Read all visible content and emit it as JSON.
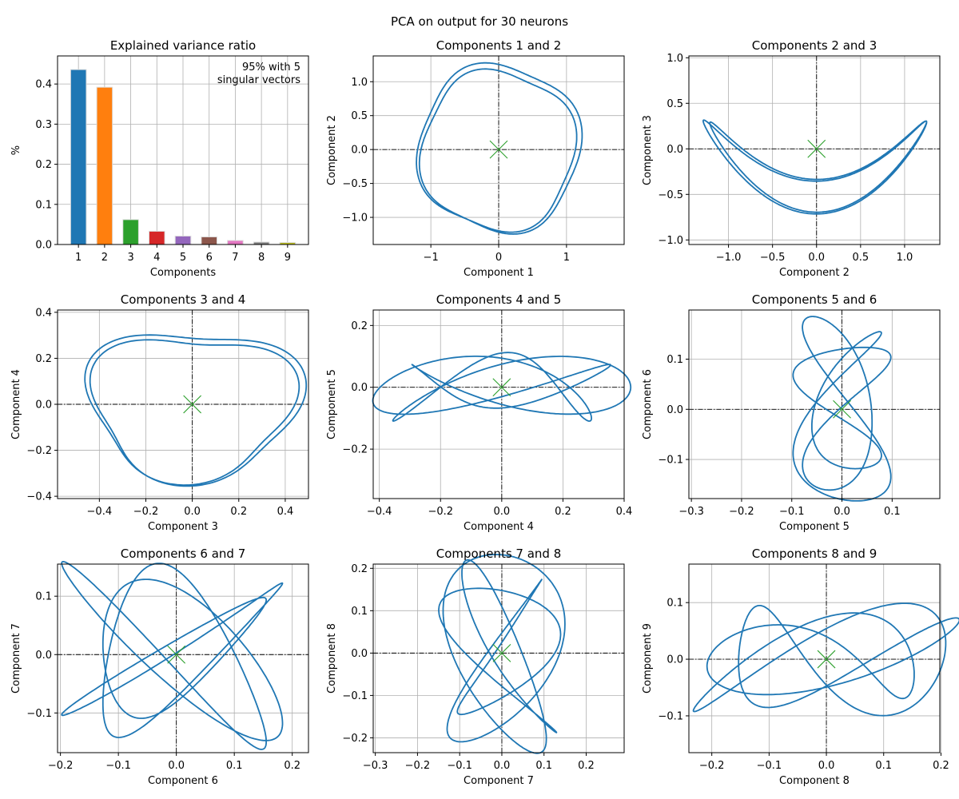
{
  "figure_title": "PCA on output for 30 neurons",
  "chart_data": [
    {
      "type": "bar",
      "title": "Explained variance ratio",
      "xlabel": "Components",
      "ylabel": "%",
      "categories": [
        "1",
        "2",
        "3",
        "4",
        "5",
        "6",
        "7",
        "8",
        "9"
      ],
      "values": [
        0.436,
        0.392,
        0.062,
        0.033,
        0.021,
        0.019,
        0.01,
        0.006,
        0.005
      ],
      "colors": [
        "#1f77b4",
        "#ff7f0e",
        "#2ca02c",
        "#d62728",
        "#9467bd",
        "#8c564b",
        "#e377c2",
        "#7f7f7f",
        "#bcbd22"
      ],
      "ylim": [
        0,
        0.47
      ],
      "yticks": [
        0.0,
        0.1,
        0.2,
        0.3,
        0.4
      ],
      "ytick_labels": [
        "0.0",
        "0.1",
        "0.2",
        "0.3",
        "0.4"
      ],
      "annotation": [
        "95% with 5",
        "singular vectors"
      ],
      "grid": true
    },
    {
      "type": "line",
      "title": "Components 1 and 2",
      "xlabel": "Component 1",
      "ylabel": "Component 2",
      "xlim": [
        -1.85,
        1.85
      ],
      "ylim": [
        -1.4,
        1.38
      ],
      "xticks": [
        -1,
        0,
        1
      ],
      "xtick_labels": [
        "−1",
        "0",
        "1"
      ],
      "yticks": [
        -1.0,
        -0.5,
        0.0,
        0.5,
        1.0
      ],
      "ytick_labels": [
        "−1.0",
        "−0.5",
        "0.0",
        "0.5",
        "1.0"
      ],
      "shape": "loop",
      "rx": 1.15,
      "ry": 1.25,
      "loops": 2,
      "k": 4,
      "amp": 0.06,
      "grid": true
    },
    {
      "type": "line",
      "title": "Components 2 and 3",
      "xlabel": "Component 2",
      "ylabel": "Component 3",
      "xlim": [
        -1.45,
        1.4
      ],
      "ylim": [
        -1.05,
        1.02
      ],
      "xticks": [
        -1.0,
        -0.5,
        0.0,
        0.5,
        1.0
      ],
      "xtick_labels": [
        "−1.0",
        "−0.5",
        "0.0",
        "0.5",
        "1.0"
      ],
      "yticks": [
        -1.0,
        -0.5,
        0.0,
        0.5,
        1.0
      ],
      "ytick_labels": [
        "−1.0",
        "−0.5",
        "0.0",
        "0.5",
        "1.0"
      ],
      "shape": "bowtie",
      "loops": 2,
      "grid": true
    },
    {
      "type": "line",
      "title": "Components 3 and 4",
      "xlabel": "Component 3",
      "ylabel": "Component 4",
      "xlim": [
        -0.58,
        0.5
      ],
      "ylim": [
        -0.41,
        0.41
      ],
      "xticks": [
        -0.4,
        -0.2,
        0.0,
        0.2,
        0.4
      ],
      "xtick_labels": [
        "−0.4",
        "−0.2",
        "0.0",
        "0.2",
        "0.4"
      ],
      "yticks": [
        -0.4,
        -0.2,
        0.0,
        0.2,
        0.4
      ],
      "ytick_labels": [
        "−0.4",
        "−0.2",
        "0.0",
        "0.2",
        "0.4"
      ],
      "shape": "loop",
      "rx": 0.44,
      "ry": 0.33,
      "loops": 4,
      "k": 3,
      "amp": 0.13,
      "grid": true
    },
    {
      "type": "line",
      "title": "Components 4 and 5",
      "xlabel": "Component 4",
      "ylabel": "Component 5",
      "xlim": [
        -0.42,
        0.4
      ],
      "ylim": [
        -0.36,
        0.25
      ],
      "xticks": [
        -0.4,
        -0.2,
        0.0,
        0.2,
        0.4
      ],
      "xtick_labels": [
        "−0.4",
        "−0.2",
        "0.0",
        "0.2",
        "0.4"
      ],
      "yticks": [
        -0.2,
        0.0,
        0.2
      ],
      "ytick_labels": [
        "−0.2",
        "0.0",
        "0.2"
      ],
      "shape": "lissajous",
      "ax": 0.34,
      "ay": 0.09,
      "fx": 3,
      "fy": 5,
      "px": 0.4,
      "py": 1.1,
      "loops": 1,
      "grid": true
    },
    {
      "type": "line",
      "title": "Components 5 and 6",
      "xlabel": "Component 5",
      "ylabel": "Component 6",
      "xlim": [
        -0.305,
        0.195
      ],
      "ylim": [
        -0.178,
        0.198
      ],
      "xticks": [
        -0.3,
        -0.2,
        -0.1,
        0.0,
        0.1
      ],
      "xtick_labels": [
        "−0.3",
        "−0.2",
        "−0.1",
        "0.0",
        "0.1"
      ],
      "yticks": [
        -0.1,
        0.0,
        0.1
      ],
      "ytick_labels": [
        "−0.1",
        "0.0",
        "0.1"
      ],
      "shape": "lissajous",
      "ax": 0.08,
      "ay": 0.15,
      "fx": 5,
      "fy": 3,
      "px": 0.9,
      "py": 0.2,
      "loops": 1,
      "grid": true
    },
    {
      "type": "line",
      "title": "Components 6 and 7",
      "xlabel": "Component 6",
      "ylabel": "Component 7",
      "xlim": [
        -0.205,
        0.228
      ],
      "ylim": [
        -0.168,
        0.155
      ],
      "xticks": [
        -0.2,
        -0.1,
        0.0,
        0.1,
        0.2
      ],
      "xtick_labels": [
        "−0.2",
        "−0.1",
        "0.0",
        "0.1",
        "0.2"
      ],
      "yticks": [
        -0.1,
        0.0,
        0.1
      ],
      "ytick_labels": [
        "−0.1",
        "0.0",
        "0.1"
      ],
      "shape": "lissajous",
      "ax": 0.16,
      "ay": 0.13,
      "fx": 4,
      "fy": 5,
      "px": 1.3,
      "py": 0.5,
      "loops": 1,
      "grid": true
    },
    {
      "type": "line",
      "title": "Components 7 and 8",
      "xlabel": "Component 7",
      "ylabel": "Component 8",
      "xlim": [
        -0.305,
        0.29
      ],
      "ylim": [
        -0.235,
        0.21
      ],
      "xticks": [
        -0.3,
        -0.2,
        -0.1,
        0.0,
        0.1,
        0.2
      ],
      "xtick_labels": [
        "−0.3",
        "−0.2",
        "−0.1",
        "0.0",
        "0.1",
        "0.2"
      ],
      "yticks": [
        -0.2,
        -0.1,
        0.0,
        0.1,
        0.2
      ],
      "ytick_labels": [
        "−0.2",
        "−0.1",
        "0.0",
        "0.1",
        "0.2"
      ],
      "shape": "lissajous",
      "ax": 0.12,
      "ay": 0.19,
      "fx": 5,
      "fy": 4,
      "px": 0.3,
      "py": 1.7,
      "loops": 1,
      "grid": true
    },
    {
      "type": "line",
      "title": "Components 8 and 9",
      "xlabel": "Component 8",
      "ylabel": "Component 9",
      "xlim": [
        -0.24,
        0.198
      ],
      "ylim": [
        -0.165,
        0.168
      ],
      "xticks": [
        -0.2,
        -0.1,
        0.0,
        0.1,
        0.2
      ],
      "xtick_labels": [
        "−0.2",
        "−0.1",
        "0.0",
        "0.1",
        "0.2"
      ],
      "yticks": [
        -0.1,
        0.0,
        0.1
      ],
      "ytick_labels": [
        "−0.1",
        "0.0",
        "0.1"
      ],
      "shape": "lissajous",
      "ax": 0.19,
      "ay": 0.08,
      "fx": 3,
      "fy": 5,
      "px": 1.0,
      "py": 0.4,
      "loops": 1,
      "grid": true
    }
  ],
  "colors": {
    "line": "#1f77b4",
    "marker": "#2ca02c",
    "grid": "#b0b0b0"
  }
}
